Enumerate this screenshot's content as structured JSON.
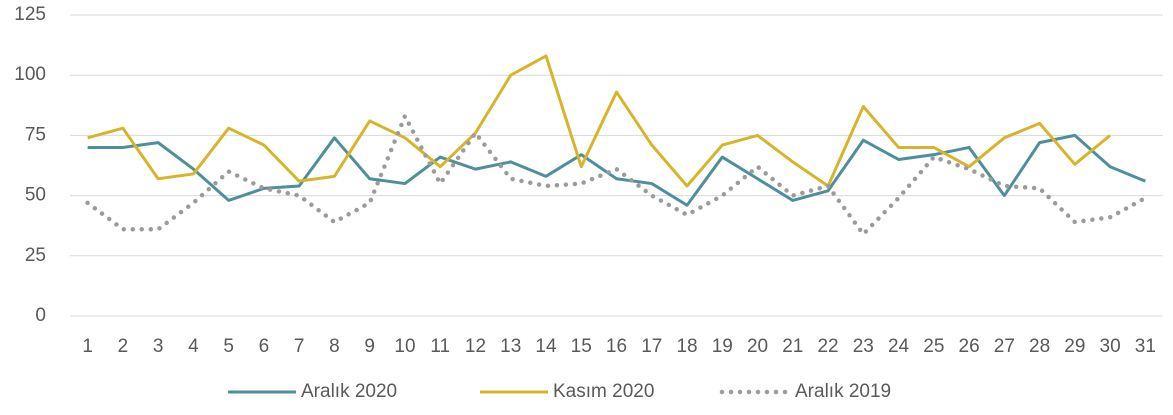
{
  "chart_data": {
    "type": "line",
    "categories": [
      "1",
      "2",
      "3",
      "4",
      "5",
      "6",
      "7",
      "8",
      "9",
      "10",
      "11",
      "12",
      "13",
      "14",
      "15",
      "16",
      "17",
      "18",
      "19",
      "20",
      "21",
      "22",
      "23",
      "24",
      "25",
      "26",
      "27",
      "28",
      "29",
      "30",
      "31"
    ],
    "series": [
      {
        "name": "Aralık 2020",
        "color": "#4f8f9b",
        "style": "solid",
        "values": [
          70,
          70,
          72,
          61,
          48,
          53,
          54,
          74,
          57,
          55,
          66,
          61,
          64,
          58,
          67,
          57,
          55,
          46,
          66,
          57,
          48,
          52,
          73,
          65,
          67,
          70,
          50,
          72,
          75,
          62,
          56
        ]
      },
      {
        "name": "Kasım 2020",
        "color": "#d6b52b",
        "style": "solid",
        "values": [
          74,
          78,
          57,
          59,
          78,
          71,
          56,
          58,
          81,
          74,
          62,
          76,
          100,
          108,
          62,
          93,
          71,
          54,
          71,
          75,
          64,
          54,
          87,
          70,
          70,
          62,
          74,
          80,
          63,
          75,
          null
        ]
      },
      {
        "name": "Aralık 2019",
        "color": "#9b9b9b",
        "style": "dotted",
        "values": [
          47,
          36,
          36,
          47,
          60,
          53,
          50,
          39,
          47,
          83,
          55,
          76,
          57,
          54,
          55,
          61,
          50,
          42,
          50,
          62,
          50,
          54,
          34,
          49,
          66,
          61,
          54,
          53,
          39,
          41,
          49
        ]
      }
    ],
    "ylim": [
      0,
      125
    ],
    "yticks": [
      0,
      25,
      50,
      75,
      100,
      125
    ],
    "grid": true,
    "legend": "bottom"
  }
}
